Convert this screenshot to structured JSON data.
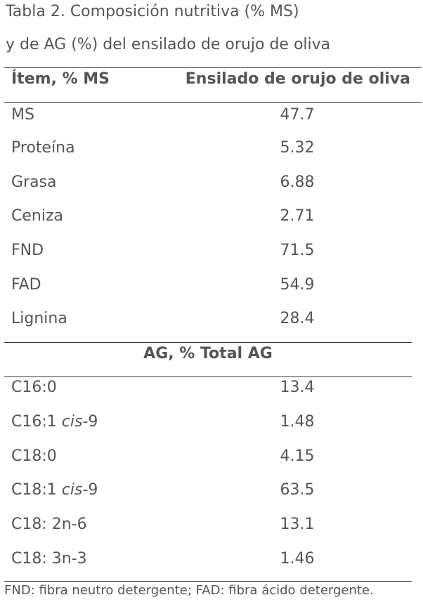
{
  "caption": {
    "line1": "Tabla 2. Composición nutritiva (% MS)",
    "line2": "y de AG (%) del ensilado de orujo de oliva"
  },
  "table": {
    "headers": {
      "item": "Ítem, % MS",
      "value": "Ensilado de orujo de oliva"
    },
    "rows_ms": [
      {
        "label": "MS",
        "value": "47.7"
      },
      {
        "label": "Proteína",
        "value": "5.32"
      },
      {
        "label": "Grasa",
        "value": "6.88"
      },
      {
        "label": "Ceniza",
        "value": "2.71"
      },
      {
        "label": "FND",
        "value": "71.5"
      },
      {
        "label": "FAD",
        "value": "54.9"
      },
      {
        "label": "Lignina",
        "value": "28.4"
      }
    ],
    "section_ag": "AG, % Total AG",
    "rows_ag": [
      {
        "label": "C16:0",
        "value": "13.4"
      },
      {
        "label_prefix": "C16:1 ",
        "label_italic": "cis",
        "label_suffix": "-9",
        "value": "1.48"
      },
      {
        "label": "C18:0",
        "value": "4.15"
      },
      {
        "label_prefix": "C18:1 ",
        "label_italic": "cis",
        "label_suffix": "-9",
        "value": "63.5"
      },
      {
        "label": "C18: 2n-6",
        "value": "13.1"
      },
      {
        "label": "C18: 3n-3",
        "value": "1.46"
      }
    ]
  },
  "footnote": "FND: fibra neutro detergente; FAD: fibra ácido detergente."
}
